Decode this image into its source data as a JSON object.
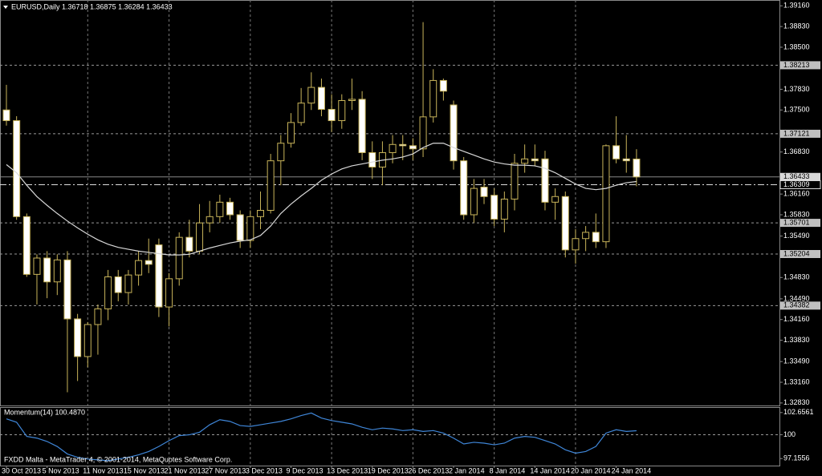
{
  "chart_data": [
    {
      "type": "candlestick",
      "title": "EURUSD,Daily 1.36718 1.36875 1.36284 1.36433",
      "categories": [
        "30 Oct 2013",
        null,
        null,
        null,
        "5 Nov 2013",
        null,
        null,
        null,
        "11 Nov 2013",
        null,
        null,
        null,
        "15 Nov 2013",
        null,
        null,
        null,
        "21 Nov 2013",
        null,
        null,
        null,
        "27 Nov 2013",
        null,
        null,
        null,
        "3 Dec 2013",
        null,
        null,
        null,
        "9 Dec 2013",
        null,
        null,
        null,
        "13 Dec 2013",
        null,
        null,
        null,
        "19 Dec 2013",
        null,
        null,
        null,
        "26 Dec 2013",
        null,
        null,
        null,
        "2 Jan 2014",
        null,
        null,
        null,
        "8 Jan 2014",
        null,
        null,
        null,
        "14 Jan 2014",
        null,
        null,
        null,
        "20 Jan 2014",
        null,
        null,
        null,
        "24 Jan 2014",
        null,
        null
      ],
      "open": [
        1.375,
        1.3733,
        1.358,
        1.3488,
        1.3514,
        1.3476,
        1.3511,
        1.3417,
        1.3357,
        1.3408,
        1.3433,
        1.3484,
        1.3459,
        1.3487,
        1.351,
        1.3535,
        1.3436,
        1.3481,
        1.3547,
        1.3525,
        1.357,
        1.358,
        1.3603,
        1.3583,
        1.3542,
        1.358,
        1.359,
        1.3669,
        1.3697,
        1.373,
        1.3761,
        1.3786,
        1.3751,
        1.3733,
        1.3765,
        1.3767,
        1.3682,
        1.3659,
        1.3682,
        1.3695,
        1.3693,
        1.3688,
        1.3739,
        1.3797,
        1.3758,
        1.3669,
        1.3583,
        1.3627,
        1.3614,
        1.3576,
        1.3608,
        1.3665,
        1.3672,
        1.3672,
        1.3603,
        1.3612,
        1.3527,
        1.3545,
        1.3555,
        1.354,
        1.3693,
        1.3672,
        1.36718
      ],
      "high": [
        1.379,
        1.374,
        1.3585,
        1.352,
        1.3525,
        1.352,
        1.3525,
        1.3425,
        1.3412,
        1.344,
        1.3495,
        1.3495,
        1.3495,
        1.3525,
        1.3545,
        1.3545,
        1.349,
        1.3555,
        1.3575,
        1.36,
        1.3605,
        1.3615,
        1.361,
        1.359,
        1.359,
        1.362,
        1.368,
        1.371,
        1.3745,
        1.3785,
        1.381,
        1.38,
        1.3775,
        1.3775,
        1.38,
        1.378,
        1.37,
        1.37,
        1.371,
        1.371,
        1.3705,
        1.389,
        1.3815,
        1.38,
        1.3765,
        1.3675,
        1.364,
        1.364,
        1.3625,
        1.362,
        1.368,
        1.3695,
        1.3695,
        1.3685,
        1.3625,
        1.362,
        1.356,
        1.3565,
        1.3585,
        1.3695,
        1.374,
        1.371,
        1.36875
      ],
      "low": [
        1.3725,
        1.3575,
        1.3484,
        1.344,
        1.345,
        1.3455,
        1.33,
        1.3318,
        1.334,
        1.336,
        1.3415,
        1.3445,
        1.344,
        1.347,
        1.349,
        1.342,
        1.3405,
        1.347,
        1.3515,
        1.352,
        1.3555,
        1.357,
        1.3575,
        1.353,
        1.353,
        1.356,
        1.3585,
        1.363,
        1.369,
        1.3725,
        1.375,
        1.374,
        1.3715,
        1.372,
        1.375,
        1.367,
        1.364,
        1.363,
        1.3665,
        1.367,
        1.367,
        1.3675,
        1.373,
        1.3765,
        1.3655,
        1.3575,
        1.357,
        1.36,
        1.3565,
        1.3555,
        1.359,
        1.365,
        1.366,
        1.359,
        1.3575,
        1.3515,
        1.3505,
        1.3525,
        1.353,
        1.353,
        1.3665,
        1.365,
        1.36284
      ],
      "close": [
        1.3733,
        1.358,
        1.3488,
        1.3514,
        1.3476,
        1.3511,
        1.3417,
        1.3357,
        1.3408,
        1.3433,
        1.3484,
        1.3459,
        1.3487,
        1.351,
        1.3504,
        1.3436,
        1.3481,
        1.3547,
        1.3525,
        1.357,
        1.358,
        1.3603,
        1.3583,
        1.3542,
        1.358,
        1.359,
        1.3669,
        1.3697,
        1.373,
        1.3761,
        1.3786,
        1.3751,
        1.3733,
        1.3765,
        1.3767,
        1.3682,
        1.3659,
        1.3682,
        1.3695,
        1.3693,
        1.3688,
        1.3739,
        1.3797,
        1.378,
        1.3669,
        1.3583,
        1.3625,
        1.3612,
        1.3576,
        1.3608,
        1.3665,
        1.3672,
        1.3669,
        1.3603,
        1.3612,
        1.3527,
        1.3545,
        1.3555,
        1.354,
        1.3693,
        1.3672,
        1.3669,
        1.36433
      ],
      "ma": {
        "color": "#d8d8d8",
        "values": [
          1.3663,
          1.365,
          1.363,
          1.3612,
          1.3598,
          1.3585,
          1.3573,
          1.3562,
          1.3552,
          1.3543,
          1.3536,
          1.3531,
          1.3528,
          1.3525,
          1.3523,
          1.3521,
          1.3519,
          1.3519,
          1.352,
          1.3525,
          1.353,
          1.3534,
          1.3538,
          1.3541,
          1.3543,
          1.355,
          1.3565,
          1.3585,
          1.36,
          1.3613,
          1.3625,
          1.3638,
          1.3648,
          1.3656,
          1.3661,
          1.3664,
          1.3667,
          1.367,
          1.3672,
          1.3675,
          1.368,
          1.369,
          1.3697,
          1.3697,
          1.369,
          1.3684,
          1.3678,
          1.3672,
          1.3667,
          1.3664,
          1.3662,
          1.3662,
          1.3661,
          1.3657,
          1.365,
          1.3641,
          1.3632,
          1.3625,
          1.3623,
          1.3625,
          1.363,
          1.3634,
          1.3636
        ]
      },
      "up_color": "#000000",
      "down_color": "#ffffff",
      "wick_color": "#c8b45a",
      "ylim": [
        1.3279,
        1.3924
      ],
      "yticks": [
        {
          "value": 1.3916,
          "label": "1.39160"
        },
        {
          "value": 1.3883,
          "label": "1.38830"
        },
        {
          "value": 1.385,
          "label": "1.38500"
        },
        {
          "value": 1.3783,
          "label": "1.37830"
        },
        {
          "value": 1.375,
          "label": "1.37500"
        },
        {
          "value": 1.3683,
          "label": "1.36830"
        },
        {
          "value": 1.3616,
          "label": "1.36160"
        },
        {
          "value": 1.3583,
          "label": "1.35830"
        },
        {
          "value": 1.3549,
          "label": "1.35490"
        },
        {
          "value": 1.3483,
          "label": "1.34830"
        },
        {
          "value": 1.3449,
          "label": "1.34490"
        },
        {
          "value": 1.3416,
          "label": "1.34160"
        },
        {
          "value": 1.3383,
          "label": "1.33830"
        },
        {
          "value": 1.3349,
          "label": "1.33490"
        },
        {
          "value": 1.3316,
          "label": "1.33160"
        },
        {
          "value": 1.3283,
          "label": "1.32830"
        }
      ],
      "levels": [
        1.38213,
        1.37121,
        1.35701,
        1.35204,
        1.34382
      ],
      "marker_level": 1.36309,
      "last_price": 1.36433,
      "grid": true
    },
    {
      "type": "line",
      "title": "Momentum(14) 100.4870",
      "color": "#3f86d8",
      "values": [
        101.9,
        101.5,
        99.8,
        99.6,
        99.2,
        98.6,
        97.7,
        97.3,
        97.1,
        97.0,
        96.9,
        97.1,
        97.3,
        97.6,
        98.0,
        98.6,
        99.3,
        99.9,
        100.0,
        100.3,
        101.2,
        101.8,
        101.6,
        101.1,
        101.0,
        101.2,
        101.4,
        101.6,
        101.9,
        102.3,
        102.6,
        102.0,
        101.7,
        101.5,
        101.3,
        100.9,
        100.6,
        100.8,
        100.7,
        100.5,
        100.6,
        100.4,
        100.5,
        100.2,
        99.6,
        98.9,
        99.1,
        99.0,
        98.8,
        99.0,
        99.6,
        99.8,
        99.7,
        99.3,
        98.9,
        98.2,
        97.8,
        98.0,
        98.6,
        100.2,
        100.6,
        100.4,
        100.487
      ],
      "ylim": [
        96.41,
        103.12
      ],
      "yticks": [
        102.6561,
        100,
        97.1556
      ],
      "reference_line": 100
    }
  ],
  "footer": "FXDD Malta - MetaTrader 4, © 2001-2014, MetaQuotes Software Corp."
}
